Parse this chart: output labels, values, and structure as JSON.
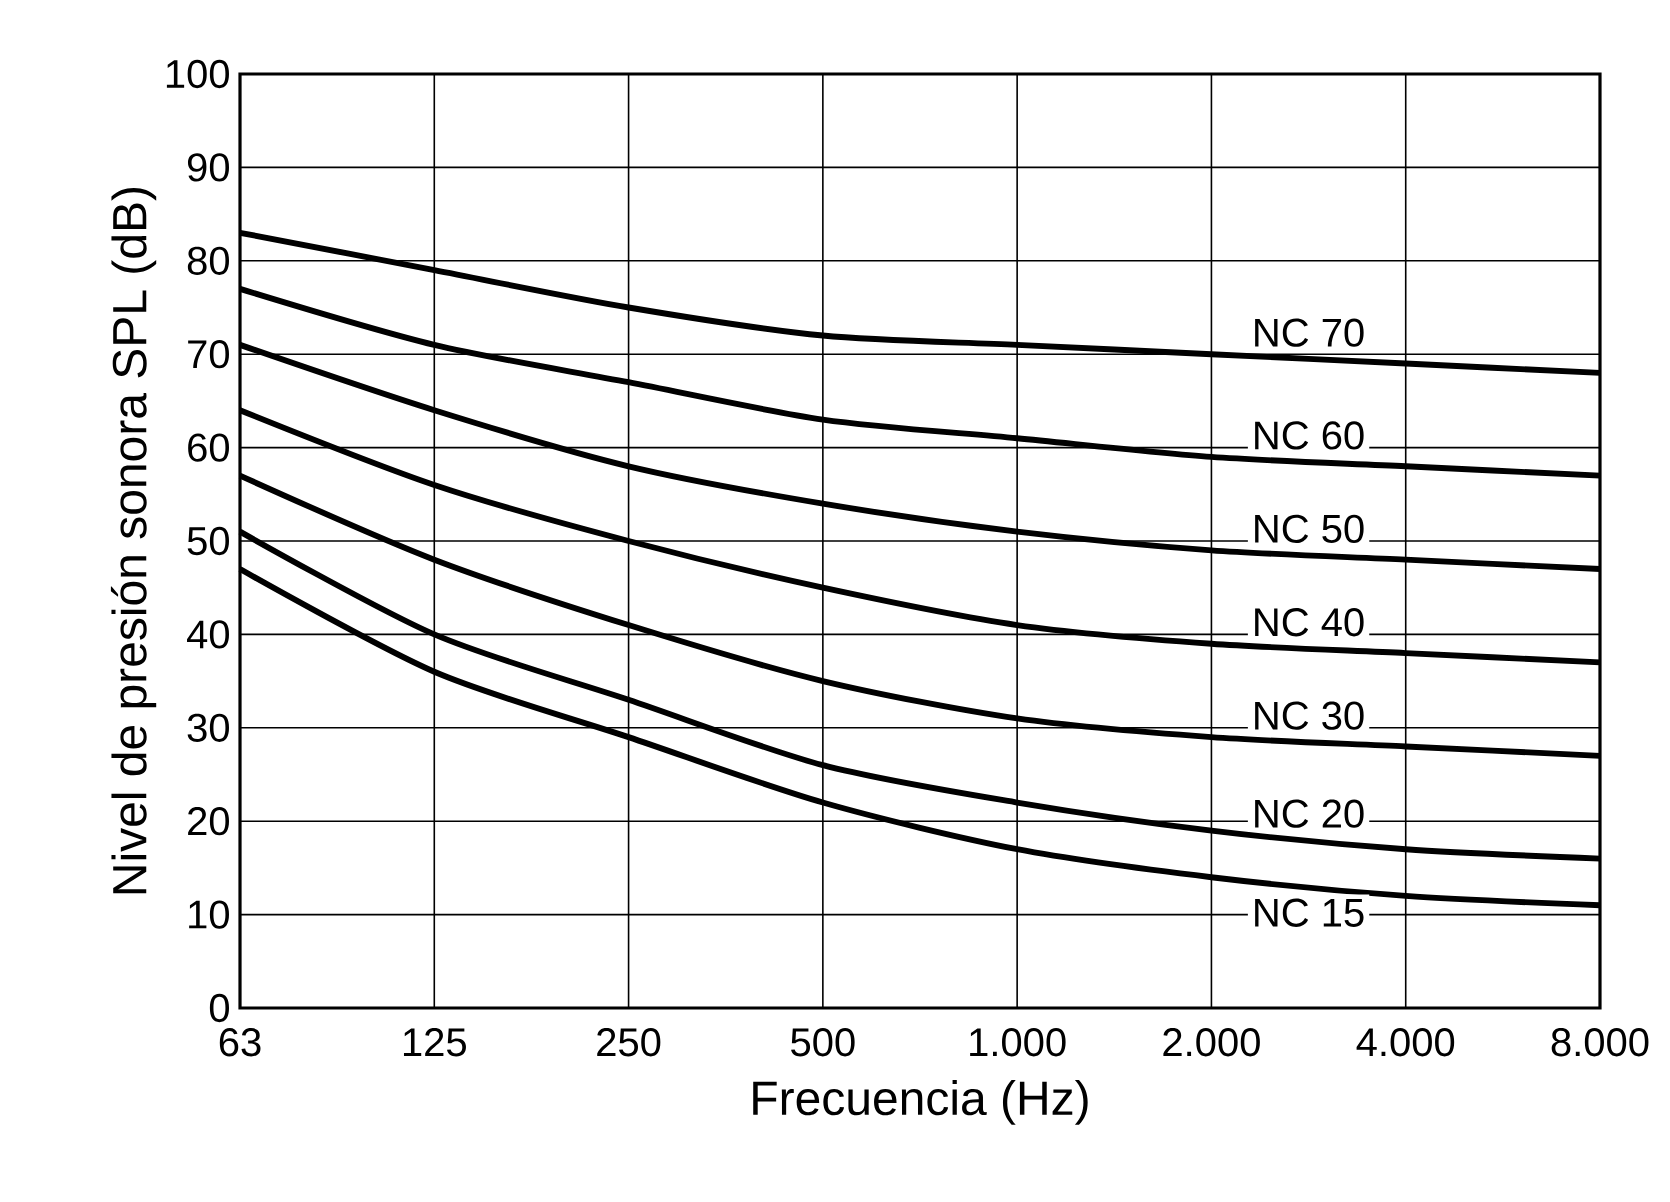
{
  "chart_data": {
    "type": "line",
    "xlabel": "Frecuencia  (Hz)",
    "ylabel": "Nivel de presión sonora SPL (dB)",
    "categories": [
      "63",
      "125",
      "250",
      "500",
      "1.000",
      "2.000",
      "4.000",
      "8.000"
    ],
    "ylim": [
      0,
      100
    ],
    "yticks": [
      0,
      10,
      20,
      30,
      40,
      50,
      60,
      70,
      80,
      90,
      100
    ],
    "grid": true,
    "marker": "none",
    "line_style": "solid",
    "series": [
      {
        "name": "NC 70",
        "color": "#000000",
        "values": [
          83,
          79,
          75,
          72,
          71,
          70,
          69,
          68
        ]
      },
      {
        "name": "NC 60",
        "color": "#000000",
        "values": [
          77,
          71,
          67,
          63,
          61,
          59,
          58,
          57
        ]
      },
      {
        "name": "NC 50",
        "color": "#000000",
        "values": [
          71,
          64,
          58,
          54,
          51,
          49,
          48,
          47
        ]
      },
      {
        "name": "NC 40",
        "color": "#000000",
        "values": [
          64,
          56,
          50,
          45,
          41,
          39,
          38,
          37
        ]
      },
      {
        "name": "NC 30",
        "color": "#000000",
        "values": [
          57,
          48,
          41,
          35,
          31,
          29,
          28,
          27
        ]
      },
      {
        "name": "NC 20",
        "color": "#000000",
        "values": [
          51,
          40,
          33,
          26,
          22,
          19,
          17,
          16
        ]
      },
      {
        "name": "NC 15",
        "color": "#000000",
        "values": [
          47,
          36,
          29,
          22,
          17,
          14,
          12,
          11
        ]
      }
    ]
  }
}
